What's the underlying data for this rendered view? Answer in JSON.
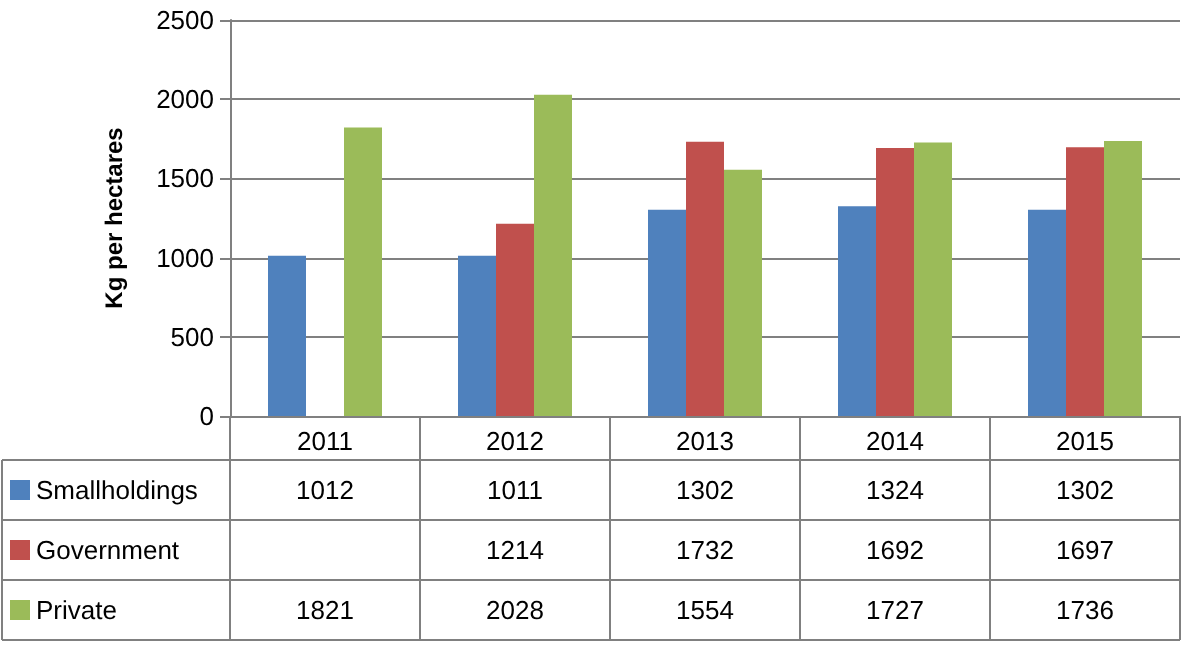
{
  "chart_data": {
    "type": "bar",
    "ylabel": "Kg per hectares",
    "categories": [
      "2011",
      "2012",
      "2013",
      "2014",
      "2015"
    ],
    "series": [
      {
        "name": "Smallholdings",
        "color": "#4f81bd",
        "values": [
          1012,
          1011,
          1302,
          1324,
          1302
        ]
      },
      {
        "name": "Government",
        "color": "#c0504d",
        "values": [
          null,
          1214,
          1732,
          1692,
          1697
        ]
      },
      {
        "name": "Private",
        "color": "#9bbb59",
        "values": [
          1821,
          2028,
          1554,
          1727,
          1736
        ]
      }
    ],
    "ylim": [
      0,
      2500
    ],
    "yticks": [
      0,
      500,
      1000,
      1500,
      2000,
      2500
    ],
    "grid": "y",
    "legend": "bottom",
    "data_labels": true
  }
}
